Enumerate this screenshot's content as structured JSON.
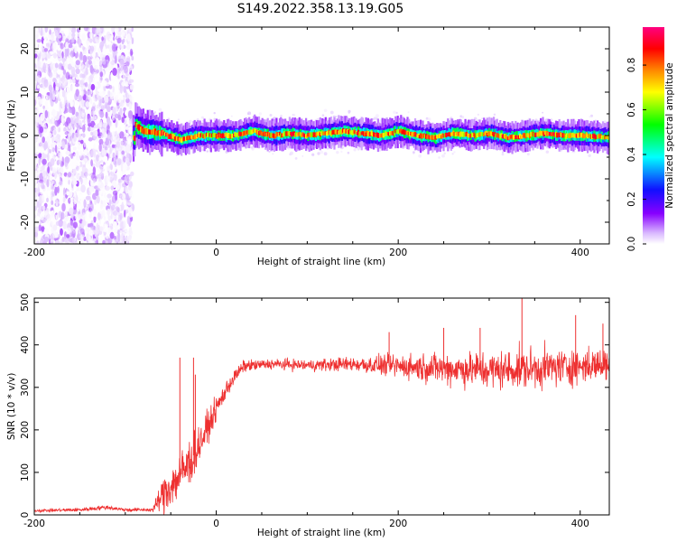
{
  "title": "S149.2022.358.13.19.G05",
  "chart_data": [
    {
      "type": "heatmap",
      "xlabel": "Height of straight line (km)",
      "ylabel": "Frequency (Hz)",
      "xlim": [
        -200,
        432
      ],
      "ylim": [
        -25,
        25
      ],
      "xticks": [
        -200,
        0,
        200,
        400
      ],
      "yticks": [
        -20,
        -10,
        0,
        10,
        20
      ],
      "colorbar": {
        "label": "Normalized spectral amplitude",
        "range": [
          0,
          0.97
        ],
        "ticks": [
          0.0,
          0.2,
          0.4,
          0.6,
          0.8
        ],
        "colormap": [
          "#ffffff",
          "#d9b8ff",
          "#8800ff",
          "#1010ff",
          "#00ffff",
          "#00ff00",
          "#ffff00",
          "#ff8800",
          "#ff0000",
          "#ff0080"
        ]
      },
      "noise_region_x": [
        -200,
        -92
      ],
      "signal_frequency_trace": [
        [
          -90,
          2.5
        ],
        [
          -80,
          1.0
        ],
        [
          -60,
          0.5
        ],
        [
          -40,
          -1.0
        ],
        [
          -20,
          0.0
        ],
        [
          0,
          0.0
        ],
        [
          20,
          0.0
        ],
        [
          40,
          1.0
        ],
        [
          60,
          0.0
        ],
        [
          80,
          0.5
        ],
        [
          100,
          0.0
        ],
        [
          120,
          0.5
        ],
        [
          140,
          1.0
        ],
        [
          160,
          0.5
        ],
        [
          180,
          0.0
        ],
        [
          200,
          1.0
        ],
        [
          220,
          0.0
        ],
        [
          240,
          -0.5
        ],
        [
          260,
          0.5
        ],
        [
          280,
          0.0
        ],
        [
          300,
          0.5
        ],
        [
          320,
          -0.5
        ],
        [
          340,
          0.0
        ],
        [
          360,
          0.5
        ],
        [
          380,
          0.0
        ],
        [
          400,
          0.0
        ],
        [
          432,
          -0.5
        ]
      ]
    },
    {
      "type": "line",
      "xlabel": "Height of straight line (km)",
      "ylabel": "SNR (10 * v/v)",
      "xlim": [
        -200,
        432
      ],
      "ylim": [
        0,
        510
      ],
      "xticks": [
        -200,
        0,
        200,
        400
      ],
      "yticks": [
        0,
        100,
        200,
        300,
        400,
        500
      ],
      "series": [
        {
          "color": "#ee3030",
          "envelope": [
            {
              "x": -200,
              "mean": 10,
              "spread": 5
            },
            {
              "x": -150,
              "mean": 12,
              "spread": 6
            },
            {
              "x": -120,
              "mean": 18,
              "spread": 8
            },
            {
              "x": -100,
              "mean": 12,
              "spread": 6
            },
            {
              "x": -70,
              "mean": 12,
              "spread": 6
            },
            {
              "x": -58,
              "mean": 50,
              "spread": 70
            },
            {
              "x": -45,
              "mean": 80,
              "spread": 80
            },
            {
              "x": -30,
              "mean": 120,
              "spread": 90
            },
            {
              "x": -15,
              "mean": 180,
              "spread": 60
            },
            {
              "x": 0,
              "mean": 250,
              "spread": 40
            },
            {
              "x": 15,
              "mean": 310,
              "spread": 30
            },
            {
              "x": 30,
              "mean": 350,
              "spread": 20
            },
            {
              "x": 60,
              "mean": 355,
              "spread": 18
            },
            {
              "x": 100,
              "mean": 352,
              "spread": 20
            },
            {
              "x": 150,
              "mean": 355,
              "spread": 25
            },
            {
              "x": 200,
              "mean": 350,
              "spread": 40
            },
            {
              "x": 250,
              "mean": 345,
              "spread": 55
            },
            {
              "x": 300,
              "mean": 340,
              "spread": 65
            },
            {
              "x": 350,
              "mean": 345,
              "spread": 70
            },
            {
              "x": 400,
              "mean": 350,
              "spread": 60
            },
            {
              "x": 432,
              "mean": 355,
              "spread": 55
            }
          ],
          "spikes": [
            [
              -40,
              370
            ],
            [
              -25,
              370
            ],
            [
              -23,
              330
            ],
            [
              336,
              510
            ],
            [
              395,
              470
            ],
            [
              425,
              450
            ],
            [
              290,
              440
            ],
            [
              190,
              430
            ],
            [
              250,
              440
            ]
          ]
        }
      ]
    }
  ]
}
